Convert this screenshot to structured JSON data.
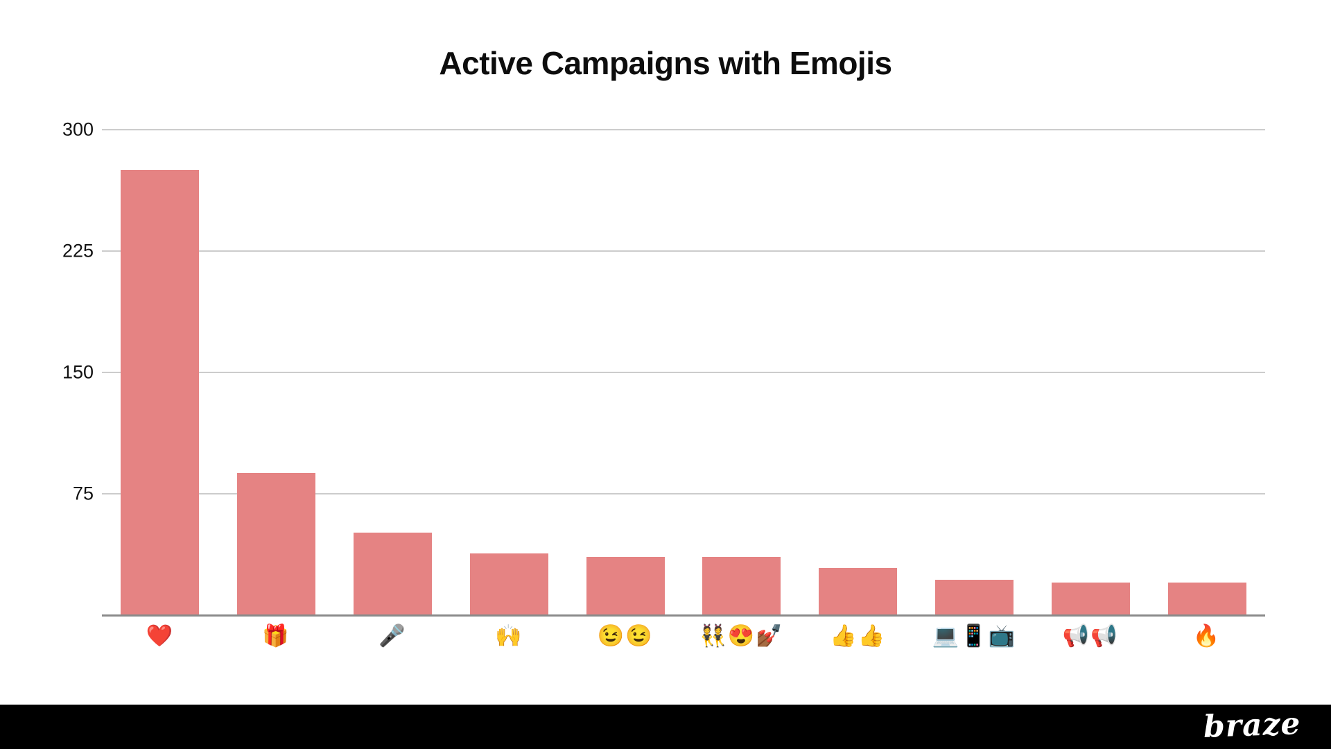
{
  "chart": {
    "title": "Active Campaigns with Emojis"
  },
  "chart_data": {
    "type": "bar",
    "title": "Active Campaigns with Emojis",
    "categories": [
      "❤️",
      "🎁",
      "🎤",
      "🙌",
      "😉😉",
      "👯😍💅🏾",
      "👍👍",
      "💻📱📺",
      "📢📢",
      "🔥"
    ],
    "category_names": [
      "red-heart",
      "gift",
      "microphone",
      "raising-hands",
      "winking-faces",
      "dancers-hearteyes-nails",
      "thumbs-up-pair",
      "laptop-phone-tv",
      "loudspeakers",
      "fire"
    ],
    "values": [
      275,
      88,
      51,
      38,
      36,
      36,
      29,
      22,
      20,
      20
    ],
    "xlabel": "",
    "ylabel": "",
    "ylim": [
      0,
      300
    ],
    "y_ticks": [
      300,
      225,
      150,
      75
    ],
    "grid": "horizontal-only",
    "legend": "none",
    "bar_color": "#E58383",
    "gridline_color": "#cccccc",
    "axis_line_color": "#8a8a8a"
  },
  "footer": {
    "logo_text": "braze",
    "background": "#000000"
  }
}
